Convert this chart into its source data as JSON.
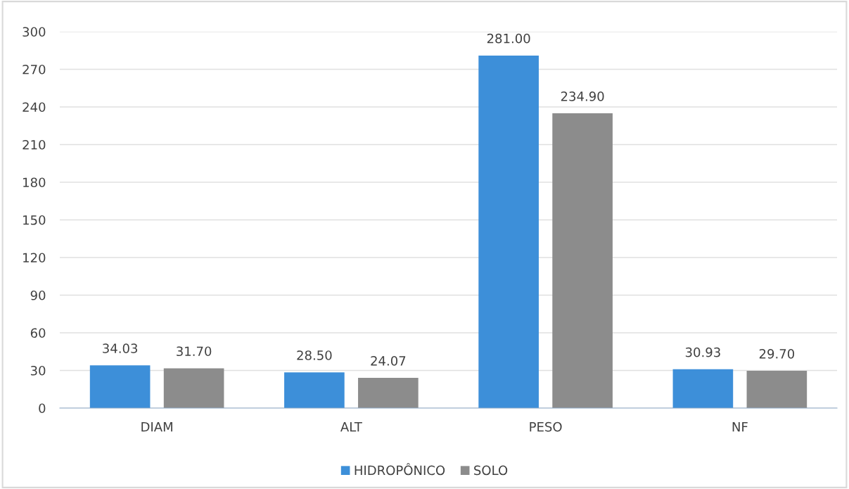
{
  "chart_data": {
    "type": "bar",
    "categories": [
      "DIAM",
      "ALT",
      "PESO",
      "NF"
    ],
    "series": [
      {
        "name": "HIDROPÔNICO",
        "color": "#3d8fd9",
        "values": [
          34.03,
          28.5,
          281,
          30.93
        ],
        "value_labels": [
          "34.03",
          "28.50",
          "281.00",
          "30.93"
        ]
      },
      {
        "name": "SOLO",
        "color": "#8c8c8c",
        "values": [
          31.7,
          24.07,
          234.9,
          29.7
        ],
        "value_labels": [
          "31.70",
          "24.07",
          "234.90",
          "29.70"
        ]
      }
    ],
    "ylim": [
      0,
      300
    ],
    "yticks": [
      0,
      30,
      60,
      90,
      120,
      150,
      180,
      210,
      240,
      270,
      300
    ],
    "grid": "y",
    "legend": "bottom"
  }
}
